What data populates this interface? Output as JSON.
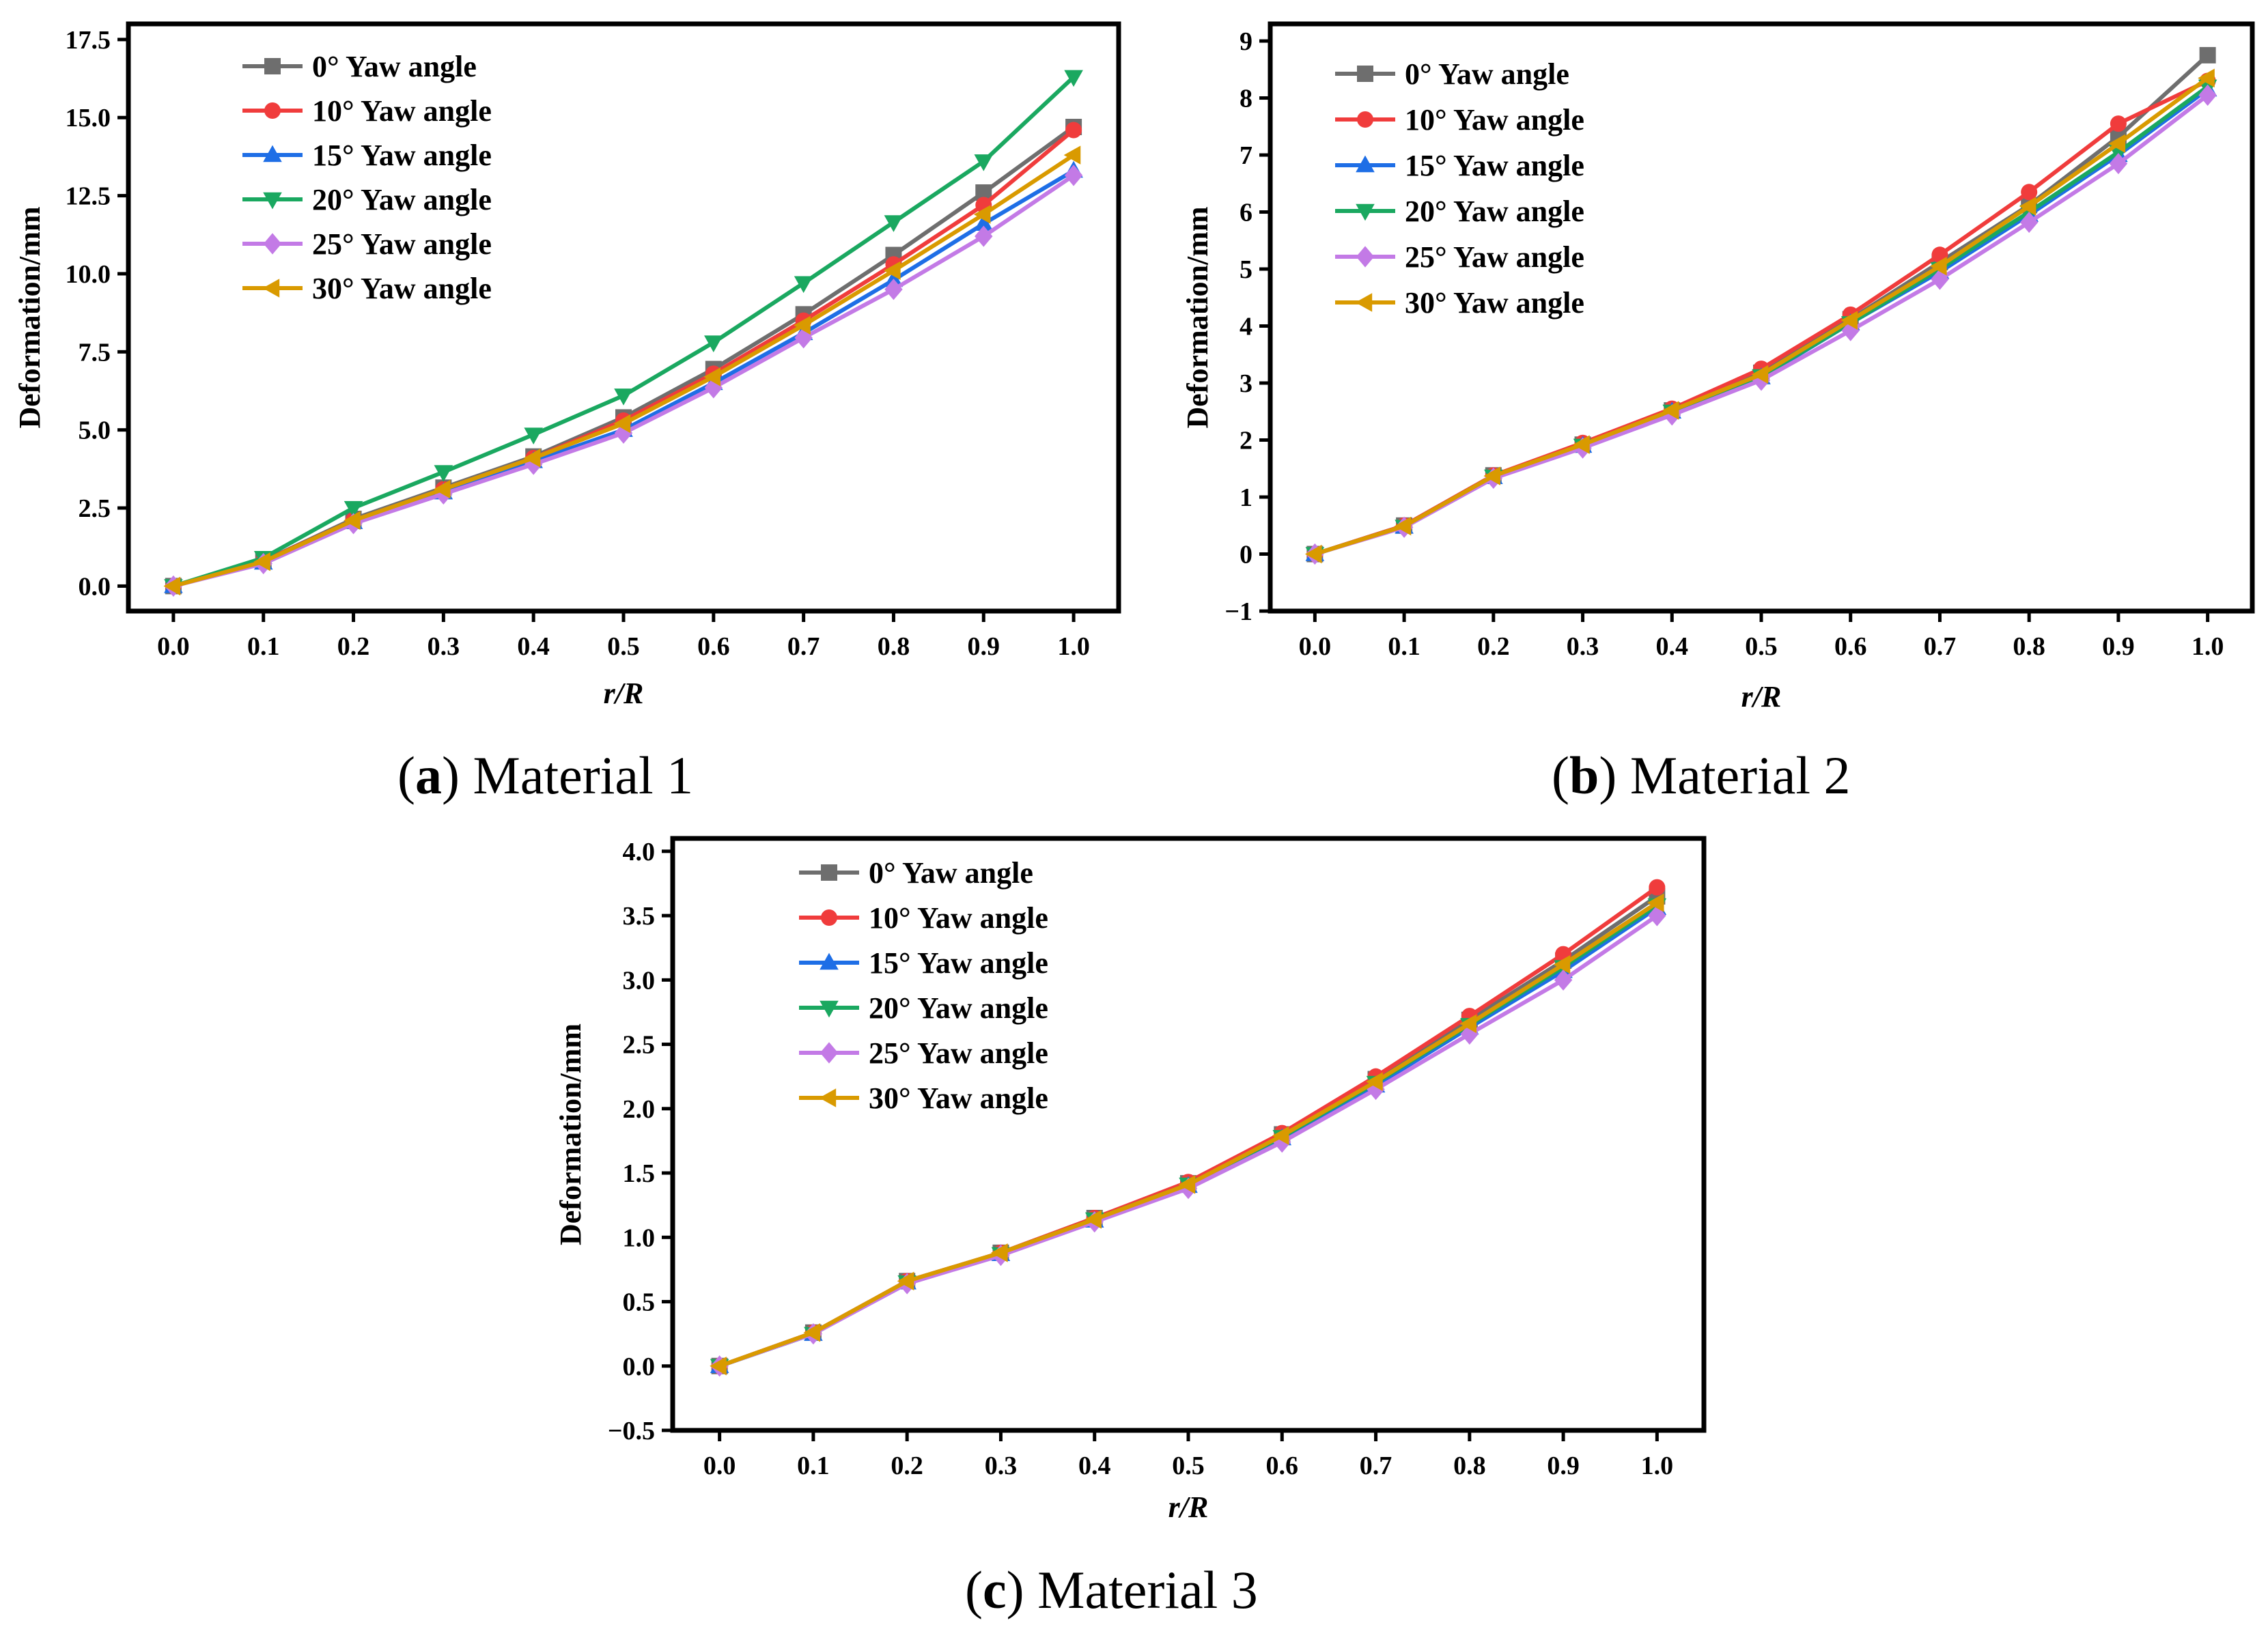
{
  "figure": {
    "captions": [
      {
        "letter": "a",
        "text": " Material 1"
      },
      {
        "letter": "b",
        "text": " Material 2"
      },
      {
        "letter": "c",
        "text": " Material 3"
      }
    ]
  },
  "series_styles": [
    {
      "color": "#6e6e6e",
      "marker": "square"
    },
    {
      "color": "#f03c3c",
      "marker": "circle"
    },
    {
      "color": "#1e6ee6",
      "marker": "triangle-up"
    },
    {
      "color": "#1aa860",
      "marker": "triangle-down"
    },
    {
      "color": "#c37ae6",
      "marker": "diamond"
    },
    {
      "color": "#d99a00",
      "marker": "triangle-left"
    }
  ],
  "chart_data": [
    {
      "type": "line",
      "xlabel": "r/R",
      "ylabel": "Deformation/mm",
      "xlim": [
        -0.05,
        1.05
      ],
      "ylim": [
        -0.8,
        18.0
      ],
      "xticks": [
        "0.0",
        "0.1",
        "0.2",
        "0.3",
        "0.4",
        "0.5",
        "0.6",
        "0.7",
        "0.8",
        "0.9",
        "1.0"
      ],
      "yticks": [
        "0.0",
        "2.5",
        "5.0",
        "7.5",
        "10.0",
        "12.5",
        "15.0",
        "17.5"
      ],
      "legend_position": "top-left",
      "x": [
        0.0,
        0.1,
        0.2,
        0.3,
        0.4,
        0.5,
        0.6,
        0.7,
        0.8,
        0.9,
        1.0
      ],
      "series": [
        {
          "name": "0° Yaw angle",
          "values": [
            0.0,
            0.8,
            2.15,
            3.15,
            4.15,
            5.4,
            6.95,
            8.7,
            10.6,
            12.6,
            14.7
          ]
        },
        {
          "name": "10° Yaw angle",
          "values": [
            0.0,
            0.8,
            2.1,
            3.1,
            4.1,
            5.3,
            6.8,
            8.5,
            10.3,
            12.2,
            14.6
          ]
        },
        {
          "name": "15° Yaw angle",
          "values": [
            0.0,
            0.75,
            2.05,
            3.0,
            4.0,
            5.0,
            6.5,
            8.1,
            9.8,
            11.6,
            13.3
          ]
        },
        {
          "name": "20° Yaw angle",
          "values": [
            0.0,
            0.9,
            2.5,
            3.65,
            4.85,
            6.1,
            7.8,
            9.7,
            11.65,
            13.6,
            16.3
          ]
        },
        {
          "name": "25° Yaw angle",
          "values": [
            0.0,
            0.72,
            2.0,
            2.95,
            3.9,
            4.9,
            6.35,
            7.95,
            9.5,
            11.2,
            13.15
          ]
        },
        {
          "name": "30° Yaw angle",
          "values": [
            0.0,
            0.78,
            2.1,
            3.1,
            4.1,
            5.2,
            6.7,
            8.35,
            10.1,
            11.9,
            13.8
          ]
        }
      ]
    },
    {
      "type": "line",
      "xlabel": "r/R",
      "ylabel": "Deformation/mm",
      "xlim": [
        -0.05,
        1.05
      ],
      "ylim": [
        -1.0,
        9.3
      ],
      "xticks": [
        "0.0",
        "0.1",
        "0.2",
        "0.3",
        "0.4",
        "0.5",
        "0.6",
        "0.7",
        "0.8",
        "0.9",
        "1.0"
      ],
      "yticks": [
        "−1",
        "0",
        "1",
        "2",
        "3",
        "4",
        "5",
        "6",
        "7",
        "8",
        "9"
      ],
      "legend_position": "top-left",
      "x": [
        0.0,
        0.1,
        0.2,
        0.3,
        0.4,
        0.5,
        0.6,
        0.7,
        0.8,
        0.9,
        1.0
      ],
      "series": [
        {
          "name": "0° Yaw angle",
          "values": [
            0.0,
            0.5,
            1.38,
            1.92,
            2.52,
            3.18,
            4.12,
            5.12,
            6.12,
            7.32,
            8.75
          ]
        },
        {
          "name": "10° Yaw angle",
          "values": [
            0.0,
            0.5,
            1.38,
            1.95,
            2.55,
            3.25,
            4.2,
            5.25,
            6.35,
            7.55,
            8.3
          ]
        },
        {
          "name": "15° Yaw angle",
          "values": [
            0.0,
            0.48,
            1.35,
            1.9,
            2.5,
            3.1,
            4.05,
            4.95,
            5.95,
            7.0,
            8.15
          ]
        },
        {
          "name": "20° Yaw angle",
          "values": [
            0.0,
            0.48,
            1.36,
            1.9,
            2.5,
            3.12,
            4.05,
            5.0,
            6.0,
            7.05,
            8.2
          ]
        },
        {
          "name": "25° Yaw angle",
          "values": [
            0.0,
            0.47,
            1.33,
            1.86,
            2.44,
            3.05,
            3.92,
            4.82,
            5.82,
            6.85,
            8.05
          ]
        },
        {
          "name": "30° Yaw angle",
          "values": [
            0.0,
            0.49,
            1.37,
            1.92,
            2.52,
            3.15,
            4.1,
            5.05,
            6.1,
            7.2,
            8.35
          ]
        }
      ]
    },
    {
      "type": "line",
      "xlabel": "r/R",
      "ylabel": "Deformation/mm",
      "xlim": [
        -0.05,
        1.05
      ],
      "ylim": [
        -0.5,
        4.1
      ],
      "xticks": [
        "0.0",
        "0.1",
        "0.2",
        "0.3",
        "0.4",
        "0.5",
        "0.6",
        "0.7",
        "0.8",
        "0.9",
        "1.0"
      ],
      "yticks": [
        "−0.5",
        "0.0",
        "0.5",
        "1.0",
        "1.5",
        "2.0",
        "2.5",
        "3.0",
        "3.5",
        "4.0"
      ],
      "legend_position": "top-left",
      "x": [
        0.0,
        0.1,
        0.2,
        0.3,
        0.4,
        0.5,
        0.6,
        0.7,
        0.8,
        0.9,
        1.0
      ],
      "series": [
        {
          "name": "0° Yaw angle",
          "values": [
            0.0,
            0.26,
            0.66,
            0.88,
            1.15,
            1.42,
            1.8,
            2.23,
            2.69,
            3.15,
            3.65
          ]
        },
        {
          "name": "10° Yaw angle",
          "values": [
            0.0,
            0.26,
            0.66,
            0.88,
            1.15,
            1.43,
            1.81,
            2.25,
            2.72,
            3.2,
            3.72
          ]
        },
        {
          "name": "15° Yaw angle",
          "values": [
            0.0,
            0.25,
            0.65,
            0.87,
            1.13,
            1.4,
            1.77,
            2.18,
            2.63,
            3.07,
            3.56
          ]
        },
        {
          "name": "20° Yaw angle",
          "values": [
            0.0,
            0.25,
            0.65,
            0.87,
            1.14,
            1.41,
            1.78,
            2.2,
            2.65,
            3.1,
            3.58
          ]
        },
        {
          "name": "25° Yaw angle",
          "values": [
            0.0,
            0.25,
            0.64,
            0.86,
            1.12,
            1.38,
            1.74,
            2.15,
            2.58,
            3.0,
            3.5
          ]
        },
        {
          "name": "30° Yaw angle",
          "values": [
            0.0,
            0.26,
            0.66,
            0.88,
            1.14,
            1.41,
            1.79,
            2.21,
            2.66,
            3.12,
            3.6
          ]
        }
      ]
    }
  ]
}
